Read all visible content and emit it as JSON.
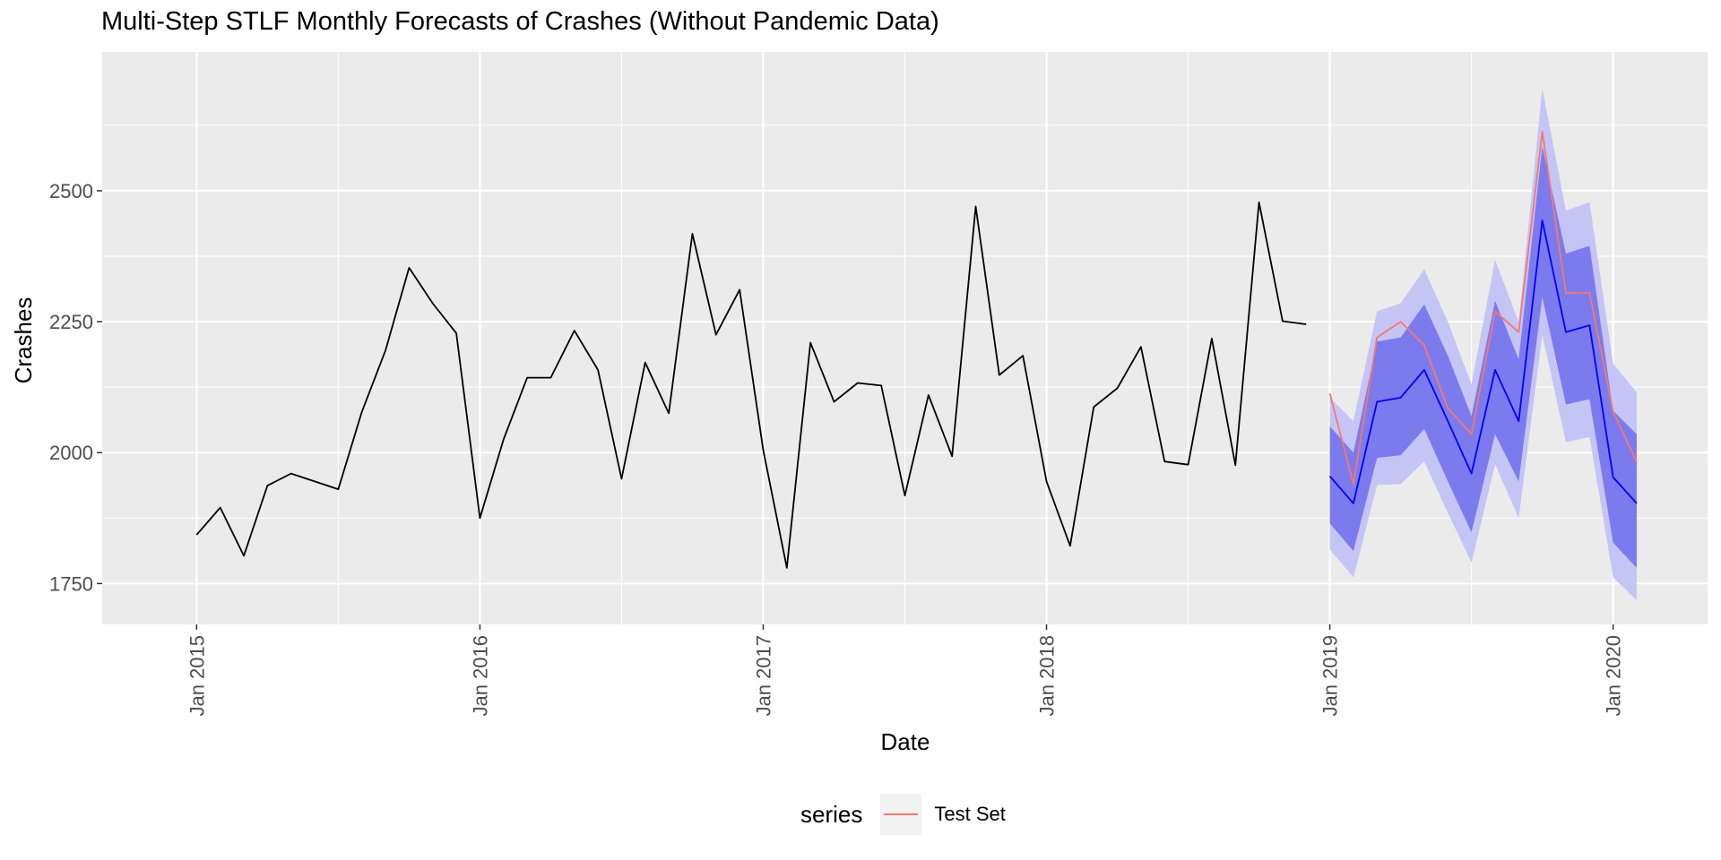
{
  "chart_data": {
    "type": "line",
    "title": "Multi-Step STLF Monthly Forecasts of Crashes (Without Pandemic Data)",
    "xlabel": "Date",
    "ylabel": "Crashes",
    "x_tick_labels": [
      "Jan 2015",
      "Jan 2016",
      "Jan 2017",
      "Jan 2018",
      "Jan 2019",
      "Jan 2020"
    ],
    "x_tick_years": [
      2015,
      2016,
      2017,
      2018,
      2019,
      2020
    ],
    "y_ticks": [
      1750,
      2000,
      2250,
      2500
    ],
    "xlim": [
      "2014-09",
      "2020-05"
    ],
    "ylim": [
      1672,
      2765
    ],
    "grid": true,
    "legend": {
      "title": "series",
      "position": "bottom",
      "entries": [
        {
          "label": "Test Set",
          "color": "#f8766d"
        }
      ]
    },
    "series": [
      {
        "role": "observed",
        "color": "#000000",
        "start": "2015-01",
        "values": [
          1843,
          1895,
          1803,
          1937,
          1960,
          1945,
          1930,
          2078,
          2195,
          2353,
          2285,
          2228,
          1875,
          2025,
          2143,
          2143,
          2233,
          2158,
          1950,
          2172,
          2075,
          2418,
          2225,
          2311,
          2005,
          1780,
          2210,
          2097,
          2133,
          2128,
          1918,
          2110,
          1993,
          2470,
          2148,
          2185,
          1945,
          1822,
          2087,
          2123,
          2202,
          1983,
          1977,
          2218,
          1976,
          2478,
          2251,
          2245
        ]
      },
      {
        "name": "Test Set",
        "color": "#f8766d",
        "start": "2019-01",
        "values": [
          2113,
          1940,
          2220,
          2250,
          2205,
          2085,
          2035,
          2270,
          2230,
          2613,
          2305,
          2305,
          2078,
          1982
        ]
      },
      {
        "role": "forecast",
        "color": "#0000ff",
        "start": "2019-01",
        "values": [
          1955,
          1903,
          2097,
          2105,
          2158,
          2060,
          1960,
          2158,
          2060,
          2443,
          2230,
          2243,
          1953,
          1903
        ],
        "interval_80": {
          "color": "#7b7bee",
          "lower": [
            1865,
            1812,
            1990,
            1995,
            2045,
            1945,
            1848,
            2035,
            1945,
            2297,
            2092,
            2102,
            1828,
            1780
          ],
          "upper": [
            2050,
            2000,
            2212,
            2220,
            2283,
            2185,
            2070,
            2290,
            2178,
            2585,
            2380,
            2395,
            2080,
            2035
          ]
        },
        "interval_95": {
          "color": "#c4c4f5",
          "lower": [
            1815,
            1762,
            1938,
            1940,
            1983,
            1885,
            1790,
            1978,
            1875,
            2225,
            2020,
            2030,
            1762,
            1718
          ],
          "upper": [
            2105,
            2060,
            2270,
            2285,
            2350,
            2250,
            2130,
            2368,
            2250,
            2695,
            2462,
            2478,
            2170,
            2115
          ]
        }
      }
    ]
  }
}
